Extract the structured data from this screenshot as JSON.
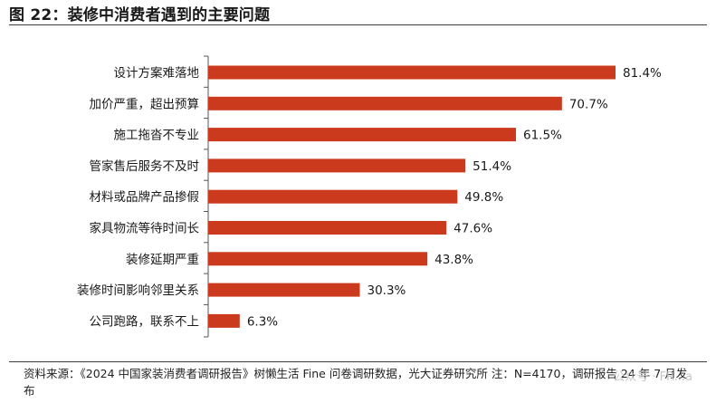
{
  "title": "图 22：装修中消费者遇到的主要问题",
  "source": "资料来源：《2024 中国家装消费者调研报告》树懒生活 Fine 问卷调研数据，光大证券研究所 注：N=4170，调研报告 24 年 7 月发布",
  "watermark": "公众号 · FR...a",
  "colors": {
    "bar": "#cc3a1e",
    "axis": "#555555"
  },
  "chart_data": {
    "type": "bar",
    "orientation": "horizontal",
    "title": "图 22：装修中消费者遇到的主要问题",
    "xlabel": "",
    "ylabel": "",
    "xlim": [
      0,
      100
    ],
    "grid": false,
    "categories": [
      "设计方案难落地",
      "加价严重，超出预算",
      "施工拖沓不专业",
      "管家售后服务不及时",
      "材料或品牌产品掺假",
      "家具物流等待时间长",
      "装修延期严重",
      "装修时间影响邻里关系",
      "公司跑路，联系不上"
    ],
    "values": [
      81.4,
      70.7,
      61.5,
      51.4,
      49.8,
      47.6,
      43.8,
      30.3,
      6.3
    ],
    "value_labels": [
      "81.4%",
      "70.7%",
      "61.5%",
      "51.4%",
      "49.8%",
      "47.6%",
      "43.8%",
      "30.3%",
      "6.3%"
    ]
  }
}
